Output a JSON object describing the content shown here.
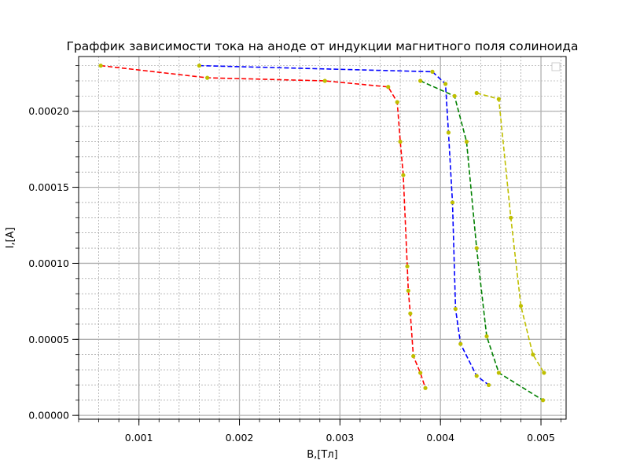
{
  "chart_data": {
    "type": "line",
    "title": "Граффик зависимости тока на аноде от индукции магнитного поля солиноида",
    "xlabel": "B,[Тл]",
    "ylabel": "I,[A]",
    "xlim": [
      0.0004,
      0.00525
    ],
    "ylim": [
      -2.5e-06,
      0.000236
    ],
    "xticks": [
      {
        "value": 0.001,
        "label": "0.001"
      },
      {
        "value": 0.002,
        "label": "0.002"
      },
      {
        "value": 0.003,
        "label": "0.003"
      },
      {
        "value": 0.004,
        "label": "0.004"
      },
      {
        "value": 0.005,
        "label": "0.005"
      }
    ],
    "yticks": [
      {
        "value": 0.0,
        "label": "0.00000"
      },
      {
        "value": 5e-05,
        "label": "0.00005"
      },
      {
        "value": 0.0001,
        "label": "0.00010"
      },
      {
        "value": 0.00015,
        "label": "0.00015"
      },
      {
        "value": 0.0002,
        "label": "0.00020"
      }
    ],
    "grid": true,
    "minor_grid": true,
    "legend": "top-right (empty)",
    "series": [
      {
        "color": "#ff0000",
        "marker_color": "#bfbf00",
        "points": [
          [
            0.00062,
            0.00023
          ],
          [
            0.00168,
            0.000222
          ],
          [
            0.00285,
            0.00022
          ],
          [
            0.00348,
            0.000216
          ],
          [
            0.00357,
            0.000206
          ],
          [
            0.0036,
            0.00018
          ],
          [
            0.00363,
            0.000158
          ],
          [
            0.00367,
            9.8e-05
          ],
          [
            0.00368,
            8.2e-05
          ],
          [
            0.0037,
            6.7e-05
          ],
          [
            0.00373,
            3.9e-05
          ],
          [
            0.0038,
            2.8e-05
          ],
          [
            0.00385,
            1.8e-05
          ]
        ]
      },
      {
        "color": "#0000ff",
        "marker_color": "#bfbf00",
        "points": [
          [
            0.0016,
            0.00023
          ],
          [
            0.00392,
            0.000226
          ],
          [
            0.00405,
            0.000218
          ],
          [
            0.00408,
            0.000186
          ],
          [
            0.00412,
            0.00014
          ],
          [
            0.00415,
            7e-05
          ],
          [
            0.0042,
            4.7e-05
          ],
          [
            0.00436,
            2.6e-05
          ],
          [
            0.00448,
            2e-05
          ]
        ]
      },
      {
        "color": "#008000",
        "marker_color": "#bfbf00",
        "points": [
          [
            0.0038,
            0.00022
          ],
          [
            0.00414,
            0.00021
          ],
          [
            0.00426,
            0.00018
          ],
          [
            0.00436,
            0.00011
          ],
          [
            0.00446,
            5.2e-05
          ],
          [
            0.00458,
            2.8e-05
          ],
          [
            0.00502,
            1e-05
          ]
        ]
      },
      {
        "color": "#bfbf00",
        "marker_color": "#bfbf00",
        "points": [
          [
            0.00436,
            0.000212
          ],
          [
            0.00458,
            0.000208
          ],
          [
            0.0047,
            0.00013
          ],
          [
            0.0048,
            7.2e-05
          ],
          [
            0.00492,
            4e-05
          ],
          [
            0.00503,
            2.8e-05
          ]
        ]
      }
    ]
  }
}
